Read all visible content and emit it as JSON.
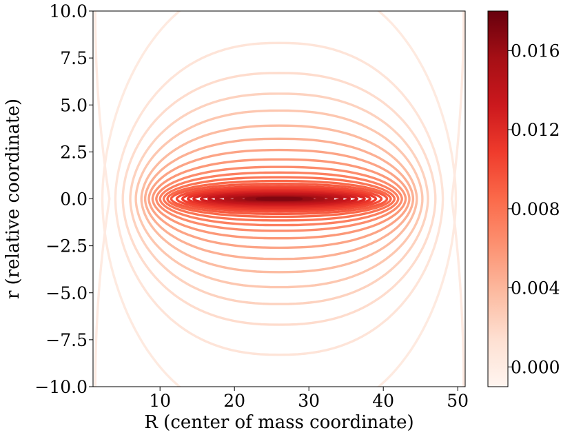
{
  "chart_data": {
    "type": "contour",
    "title": "",
    "xlabel": "R (center of mass coordinate)",
    "ylabel": "r (relative coordinate)",
    "xlim": [
      1,
      51
    ],
    "ylim": [
      -10,
      10
    ],
    "x_ticks": [
      10,
      20,
      30,
      40,
      50
    ],
    "x_tick_labels": [
      "10",
      "20",
      "30",
      "40",
      "50"
    ],
    "y_ticks": [
      10,
      7.5,
      5,
      2.5,
      0,
      -2.5,
      -5,
      -7.5,
      -10
    ],
    "y_tick_labels": [
      "10.0",
      "7.5",
      "5.0",
      "2.5",
      "0.0",
      "−2.5",
      "−5.0",
      "−7.5",
      "−10.0"
    ],
    "colormap": "Reds",
    "colorbar": {
      "range": [
        -0.001,
        0.018
      ],
      "ticks": [
        0.0,
        0.004,
        0.008,
        0.012,
        0.016
      ],
      "tick_labels": [
        "0.000",
        "0.004",
        "0.008",
        "0.012",
        "0.016"
      ]
    },
    "center": {
      "x": 26,
      "y": 0
    },
    "levels": [
      {
        "value": 0.0003,
        "width": 47.5,
        "height": 11.8
      },
      {
        "value": 0.0009,
        "width": 44.0,
        "height": 8.3
      },
      {
        "value": 0.0016,
        "width": 42.0,
        "height": 6.7
      },
      {
        "value": 0.0023,
        "width": 40.0,
        "height": 5.6
      },
      {
        "value": 0.003,
        "width": 38.5,
        "height": 4.7
      },
      {
        "value": 0.0037,
        "width": 37.0,
        "height": 3.9
      },
      {
        "value": 0.0044,
        "width": 36.0,
        "height": 3.2
      },
      {
        "value": 0.0051,
        "width": 35.0,
        "height": 2.6
      },
      {
        "value": 0.0058,
        "width": 34.0,
        "height": 2.1
      },
      {
        "value": 0.0065,
        "width": 33.0,
        "height": 1.7
      },
      {
        "value": 0.0072,
        "width": 32.0,
        "height": 1.4
      },
      {
        "value": 0.0079,
        "width": 31.0,
        "height": 1.15
      },
      {
        "value": 0.0086,
        "width": 30.0,
        "height": 0.95
      },
      {
        "value": 0.0093,
        "width": 29.0,
        "height": 0.8
      },
      {
        "value": 0.01,
        "width": 27.5,
        "height": 0.67
      },
      {
        "value": 0.0107,
        "width": 26.0,
        "height": 0.56
      },
      {
        "value": 0.0114,
        "width": 24.5,
        "height": 0.47
      },
      {
        "value": 0.0121,
        "width": 23.0,
        "height": 0.39
      },
      {
        "value": 0.0128,
        "width": 21.0,
        "height": 0.32
      },
      {
        "value": 0.0135,
        "width": 19.0,
        "height": 0.26
      },
      {
        "value": 0.0142,
        "width": 17.0,
        "height": 0.2
      },
      {
        "value": 0.0149,
        "width": 14.5,
        "height": 0.15
      },
      {
        "value": 0.0156,
        "width": 12.0,
        "height": 0.11
      },
      {
        "value": 0.0163,
        "width": 9.0,
        "height": 0.07
      },
      {
        "value": 0.017,
        "width": 6.0,
        "height": 0.04
      }
    ],
    "side_curves": [
      {
        "value": 0.0002,
        "x_inner": 3.2,
        "x_outer": 1.3
      },
      {
        "value": 0.0002,
        "x_inner": 49.2,
        "x_outer": 50.8
      }
    ]
  }
}
